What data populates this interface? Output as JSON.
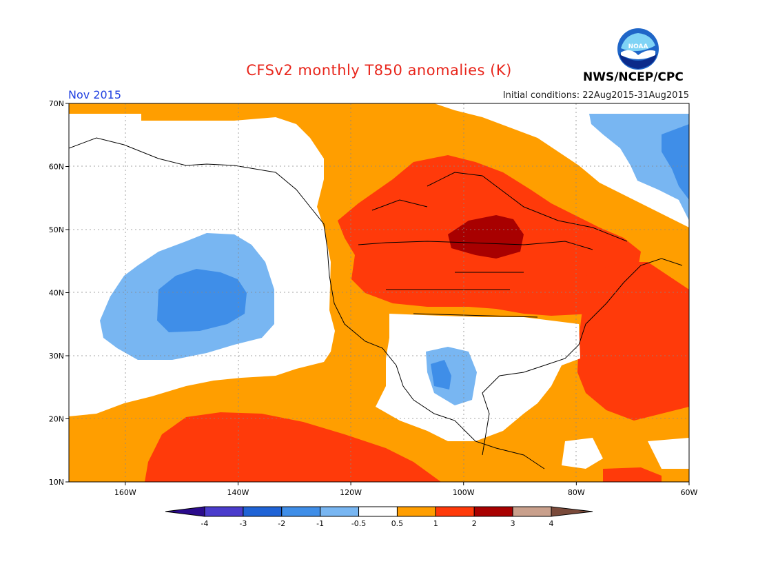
{
  "title": "CFSv2 monthly T850 anomalies (K)",
  "month": "Nov 2015",
  "initial_conditions": "Initial conditions: 22Aug2015-31Aug2015",
  "agency": "NWS/NCEP/CPC",
  "logo_text": "NOAA",
  "map": {
    "lon_range": [
      -170,
      -60
    ],
    "lat_range": [
      10,
      70
    ],
    "lon_ticks": [
      "160W",
      "140W",
      "120W",
      "100W",
      "80W",
      "60W"
    ],
    "lat_ticks": [
      "70N",
      "60N",
      "50N",
      "40N",
      "30N",
      "20N",
      "10N"
    ]
  },
  "colorbar": {
    "labels": [
      "-4",
      "-3",
      "-2",
      "-1",
      "-0.5",
      "0.5",
      "1",
      "2",
      "3",
      "4"
    ],
    "colors": [
      "#2b0b8c",
      "#4a3ccc",
      "#1f63d6",
      "#3f8ee8",
      "#78b6f2",
      "#ffffff",
      "#ff9e00",
      "#ff3a0a",
      "#a80000",
      "#c9a08c",
      "#7a4a3a"
    ]
  },
  "palette": {
    "white": "#ffffff",
    "orange": "#ff9e00",
    "red": "#ff3a0a",
    "darkred": "#a80000",
    "lightblue": "#78b6f2",
    "blue": "#3f8ee8"
  }
}
